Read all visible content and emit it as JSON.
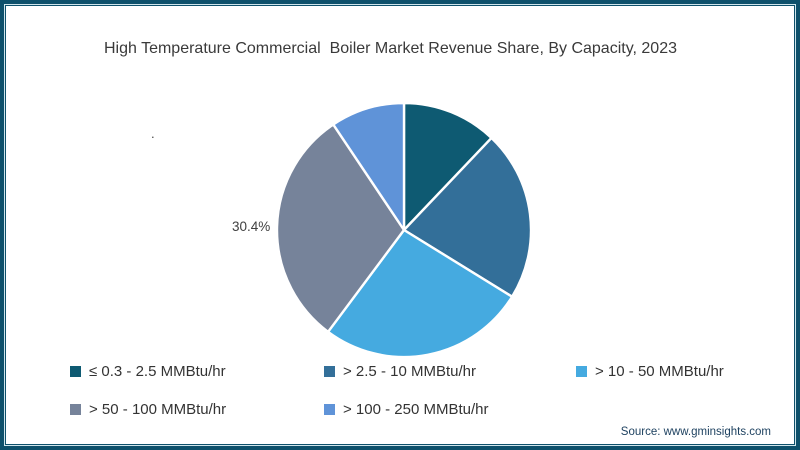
{
  "title": "High Temperature Commercial  Boiler Market Revenue Share, By Capacity, 2023",
  "stray_dot": ".",
  "source_text": "Source: www.gminsights.com",
  "frame_colors": {
    "border": "#0e506b",
    "inner_line": "#cfe5ec",
    "background": "#ffffff"
  },
  "chart_data": {
    "type": "pie",
    "title": "High Temperature Commercial  Boiler Market Revenue Share, By Capacity, 2023",
    "categories": [
      "≤ 0.3 - 2.5 MMBtu/hr",
      "> 2.5 - 10 MMBtu/hr",
      "> 10 - 50 MMBtu/hr",
      "> 50 - 100 MMBtu/hr",
      "> 100 - 250 MMBtu/hr"
    ],
    "values": [
      12.1,
      21.7,
      26.4,
      30.4,
      9.4
    ],
    "colors": [
      "#0e5a72",
      "#336f99",
      "#45aae0",
      "#76839a",
      "#5f93d8"
    ],
    "visible_labels": [
      {
        "category": "> 50 - 100 MMBtu/hr",
        "text": "30.4%"
      }
    ],
    "start_angle_deg": 0,
    "direction": "clockwise",
    "slice_separator_color": "#ffffff",
    "legend_position": "bottom"
  }
}
